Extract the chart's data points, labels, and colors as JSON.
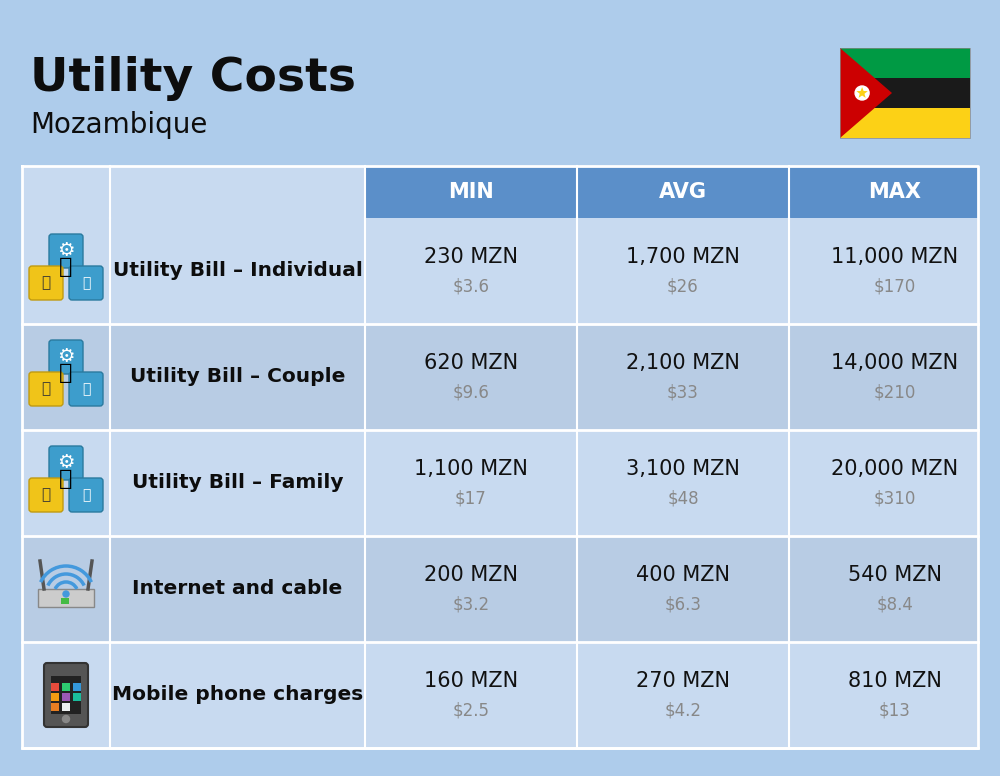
{
  "title": "Utility Costs",
  "subtitle": "Mozambique",
  "background_color": "#aecceb",
  "header_bg_color": "#5b8fc9",
  "header_text_color": "#ffffff",
  "row_bg_color_light": "#c8daf0",
  "row_bg_color_dark": "#b8cce4",
  "separator_color": "#ffffff",
  "col_header_labels": [
    "MIN",
    "AVG",
    "MAX"
  ],
  "rows": [
    {
      "label": "Utility Bill – Individual",
      "min_mzn": "230 MZN",
      "min_usd": "$3.6",
      "avg_mzn": "1,700 MZN",
      "avg_usd": "$26",
      "max_mzn": "11,000 MZN",
      "max_usd": "$170"
    },
    {
      "label": "Utility Bill – Couple",
      "min_mzn": "620 MZN",
      "min_usd": "$9.6",
      "avg_mzn": "2,100 MZN",
      "avg_usd": "$33",
      "max_mzn": "14,000 MZN",
      "max_usd": "$210"
    },
    {
      "label": "Utility Bill – Family",
      "min_mzn": "1,100 MZN",
      "min_usd": "$17",
      "avg_mzn": "3,100 MZN",
      "avg_usd": "$48",
      "max_mzn": "20,000 MZN",
      "max_usd": "$310"
    },
    {
      "label": "Internet and cable",
      "min_mzn": "200 MZN",
      "min_usd": "$3.2",
      "avg_mzn": "400 MZN",
      "avg_usd": "$6.3",
      "max_mzn": "540 MZN",
      "max_usd": "$8.4"
    },
    {
      "label": "Mobile phone charges",
      "min_mzn": "160 MZN",
      "min_usd": "$2.5",
      "avg_mzn": "270 MZN",
      "avg_usd": "$4.2",
      "max_mzn": "810 MZN",
      "max_usd": "$13"
    }
  ]
}
